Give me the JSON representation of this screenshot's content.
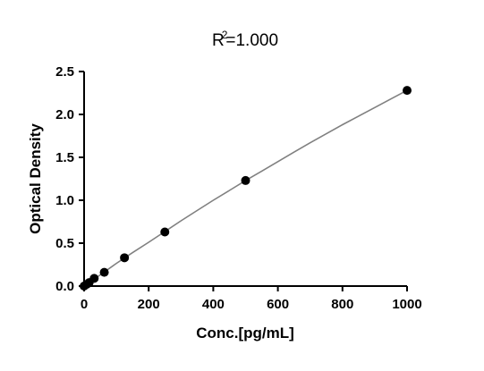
{
  "chart_data": {
    "type": "scatter",
    "title_base": "R",
    "title_sup": "2",
    "title_rest": "=1.000",
    "xlabel": "Conc.[pg/mL]",
    "ylabel": "Optical Density",
    "xlim": [
      0,
      1000
    ],
    "ylim": [
      0,
      2.5
    ],
    "x_ticks": [
      "0",
      "200",
      "400",
      "600",
      "800",
      "1000"
    ],
    "y_ticks": [
      "0.0",
      "0.5",
      "1.0",
      "1.5",
      "2.0",
      "2.5"
    ],
    "grid": false,
    "points": [
      {
        "x": 0,
        "y": 0.0
      },
      {
        "x": 7.8,
        "y": 0.02
      },
      {
        "x": 15.6,
        "y": 0.04
      },
      {
        "x": 31.25,
        "y": 0.09
      },
      {
        "x": 62.5,
        "y": 0.16
      },
      {
        "x": 125,
        "y": 0.33
      },
      {
        "x": 250,
        "y": 0.63
      },
      {
        "x": 500,
        "y": 1.23
      },
      {
        "x": 1000,
        "y": 2.28
      }
    ],
    "fit_curve": [
      [
        0,
        0.0
      ],
      [
        50,
        0.13
      ],
      [
        100,
        0.265
      ],
      [
        150,
        0.39
      ],
      [
        200,
        0.51
      ],
      [
        250,
        0.635
      ],
      [
        300,
        0.76
      ],
      [
        350,
        0.88
      ],
      [
        400,
        1.0
      ],
      [
        450,
        1.115
      ],
      [
        500,
        1.23
      ],
      [
        550,
        1.34
      ],
      [
        600,
        1.45
      ],
      [
        650,
        1.56
      ],
      [
        700,
        1.67
      ],
      [
        750,
        1.775
      ],
      [
        800,
        1.88
      ],
      [
        850,
        1.98
      ],
      [
        900,
        2.08
      ],
      [
        950,
        2.18
      ],
      [
        1000,
        2.28
      ]
    ],
    "marker_color": "#000000",
    "line_color": "#808080"
  }
}
